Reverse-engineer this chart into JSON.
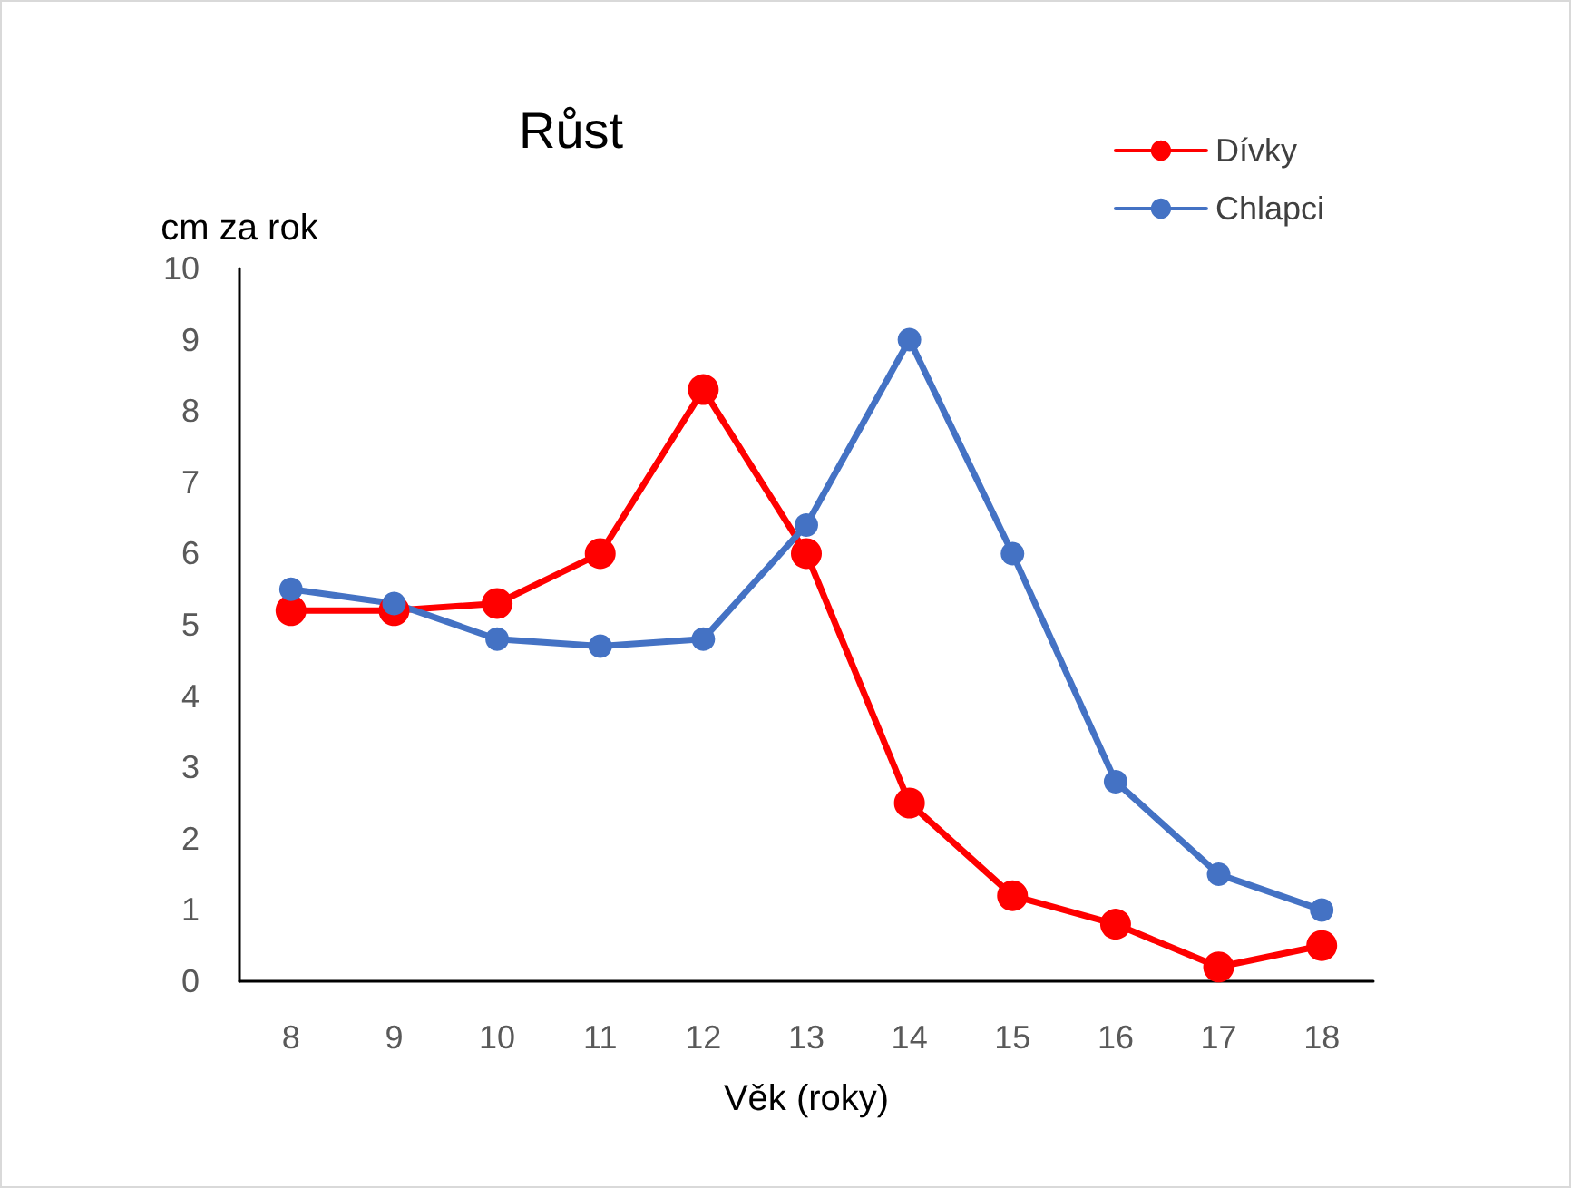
{
  "chart_data": {
    "type": "line",
    "title": "Růst",
    "xlabel": "Věk (roky)",
    "ylabel": "cm za rok",
    "categories": [
      "8",
      "9",
      "10",
      "11",
      "12",
      "13",
      "14",
      "15",
      "16",
      "17",
      "18"
    ],
    "series": [
      {
        "name": "Dívky",
        "color": "#ff0000",
        "values": [
          5.2,
          5.2,
          5.3,
          6.0,
          8.3,
          6.0,
          2.5,
          1.2,
          0.8,
          0.2,
          0.5
        ]
      },
      {
        "name": "Chlapci",
        "color": "#4472c4",
        "values": [
          5.5,
          5.3,
          4.8,
          4.7,
          4.8,
          6.4,
          9.0,
          6.0,
          2.8,
          1.5,
          1.0
        ]
      }
    ],
    "ylim": [
      0,
      10
    ],
    "yticks": [
      0,
      1,
      2,
      3,
      4,
      5,
      6,
      7,
      8,
      9,
      10
    ],
    "grid": false,
    "legend": "top right",
    "marker": "circle",
    "line_style": "solid"
  }
}
